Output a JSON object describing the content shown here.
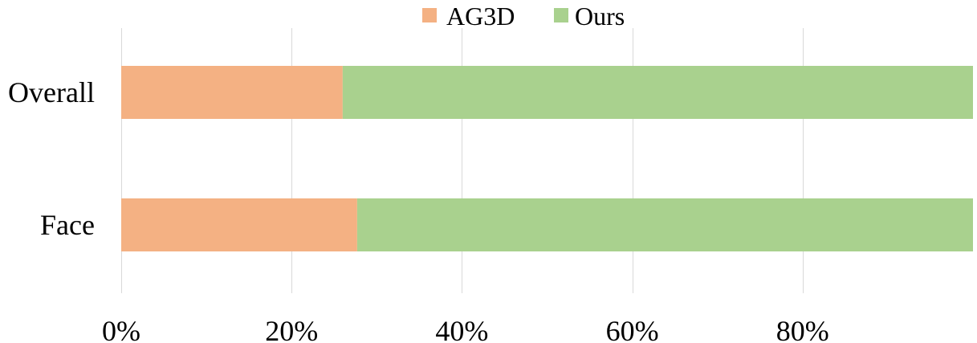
{
  "chart_data": {
    "type": "bar",
    "orientation": "horizontal",
    "stacked": true,
    "title": "",
    "xlabel": "",
    "ylabel": "",
    "categories": [
      "Overall",
      "Face"
    ],
    "series": [
      {
        "name": "AG3D",
        "values": [
          26,
          27.7
        ],
        "color": "#f4b183"
      },
      {
        "name": "Ours",
        "values": [
          74,
          72.3
        ],
        "color": "#a9d18e"
      }
    ],
    "xlim": [
      0,
      100
    ],
    "x_ticks": [
      0,
      20,
      40,
      60,
      80
    ],
    "x_tick_labels": [
      "0%",
      "20%",
      "40%",
      "60%",
      "80%"
    ],
    "grid": true,
    "legend": "top-center"
  }
}
